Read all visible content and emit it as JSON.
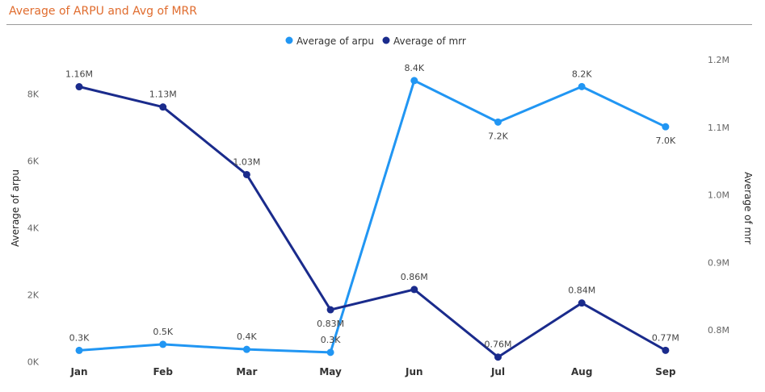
{
  "chart_data": {
    "type": "line",
    "title": "Average of ARPU and Avg of MRR",
    "categories": [
      "Jan",
      "Feb",
      "Mar",
      "May",
      "Jun",
      "Jul",
      "Aug",
      "Sep"
    ],
    "series": [
      {
        "name": "Average of arpu",
        "axis": "left",
        "color": "#2196F3",
        "values": [
          340,
          520,
          370,
          280,
          8400,
          7160,
          8220,
          7020
        ],
        "labels": [
          "0.3K",
          "0.5K",
          "0.4K",
          "0.3K",
          "8.4K",
          "7.2K",
          "8.2K",
          "7.0K"
        ]
      },
      {
        "name": "Average of mrr",
        "axis": "right",
        "color": "#1A2B8C",
        "values": [
          1160000,
          1130000,
          1030000,
          830000,
          860000,
          760000,
          840000,
          770000
        ],
        "labels": [
          "1.16M",
          "1.13M",
          "1.03M",
          "0.83M",
          "0.86M",
          "0.76M",
          "0.84M",
          "0.77M"
        ]
      }
    ],
    "y_left": {
      "label": "Average of arpu",
      "min": 0,
      "max": 9000,
      "ticks": [
        0,
        2000,
        4000,
        6000,
        8000
      ],
      "tick_labels": [
        "0K",
        "2K",
        "4K",
        "6K",
        "8K"
      ]
    },
    "y_right": {
      "label": "Average of mrr",
      "min": 0.74,
      "max": 1.22,
      "ticks": [
        0.8,
        0.9,
        1.0,
        1.1,
        1.2
      ],
      "tick_labels": [
        "0.8M",
        "0.9M",
        "1.0M",
        "1.1M",
        "1.2M"
      ]
    },
    "legend_position": "top-center",
    "grid": false
  }
}
